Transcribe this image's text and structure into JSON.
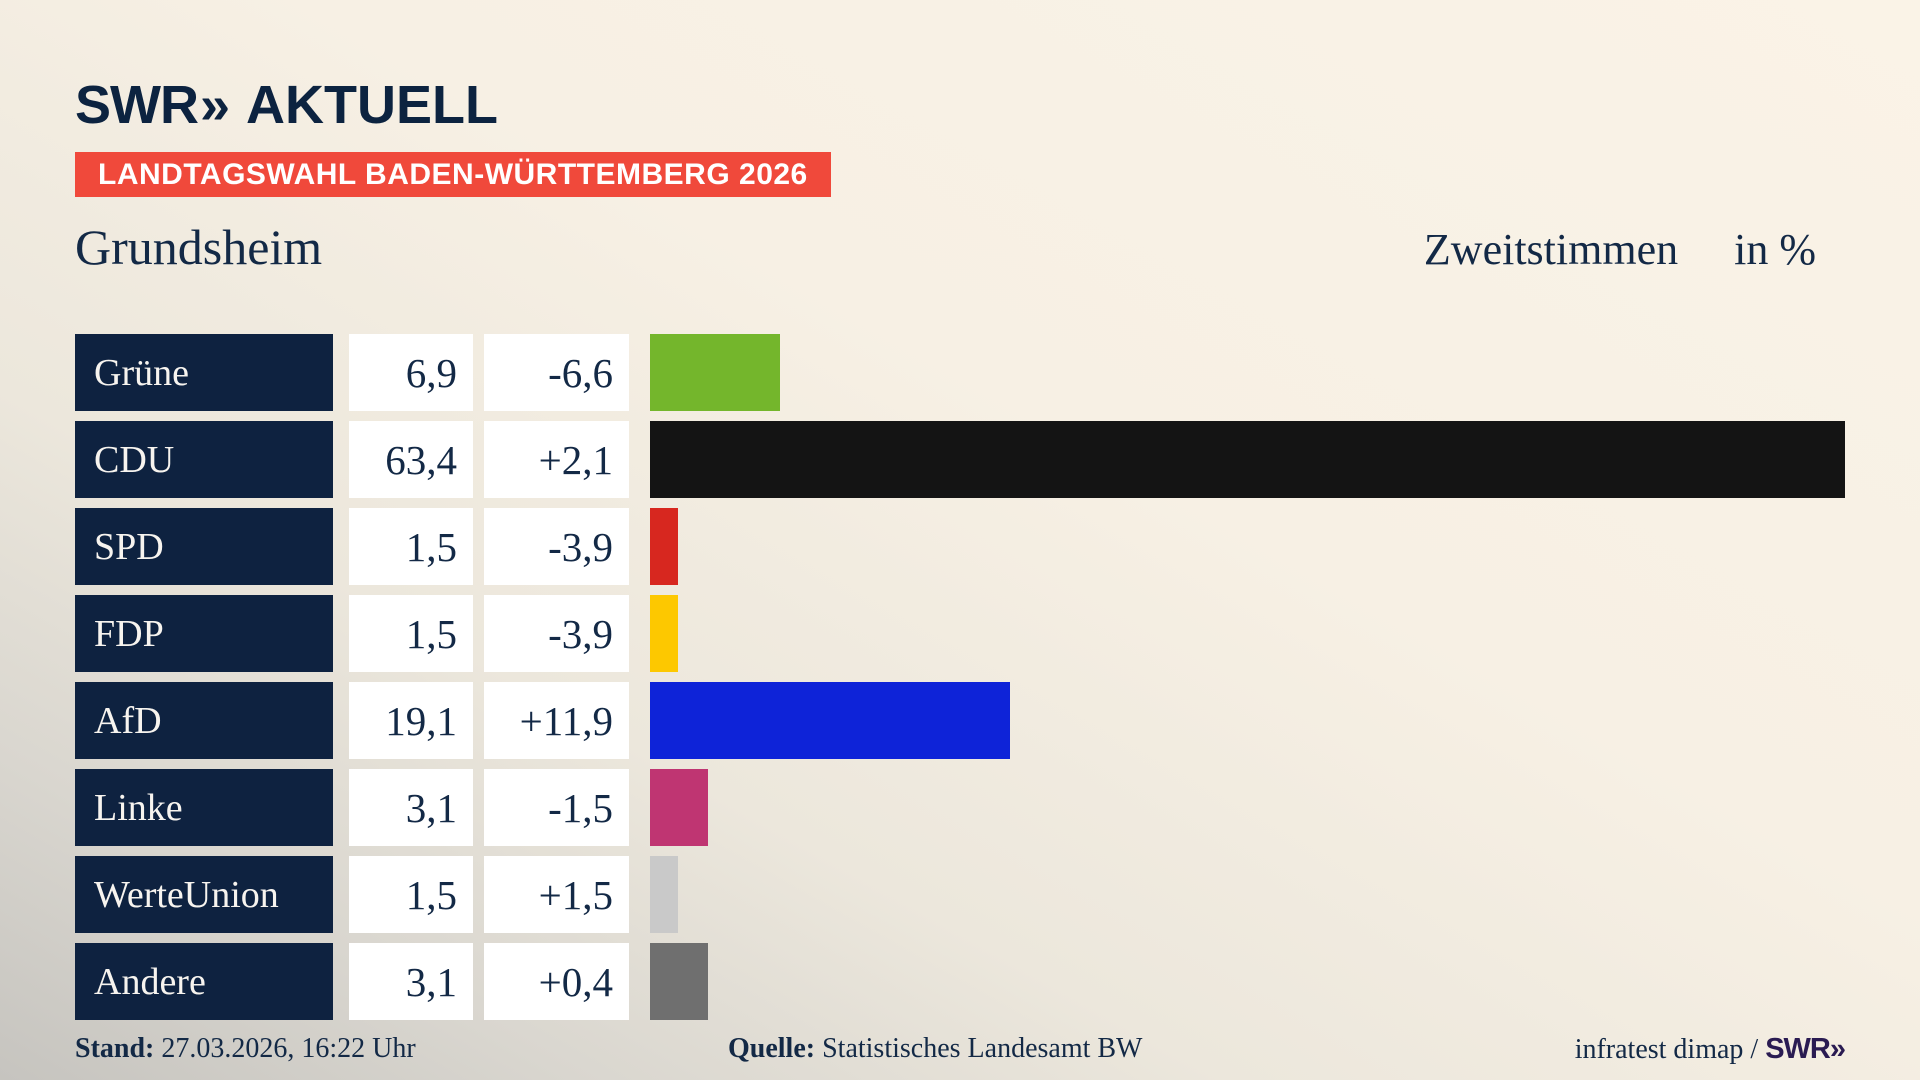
{
  "header": {
    "brand_swr": "SWR",
    "brand_chevrons": "»",
    "brand_aktuell": "AKTUELL",
    "banner": "LANDTAGSWAHL BADEN-WÜRTTEMBERG 2026",
    "title": "Grundsheim",
    "subtitle": "Zweitstimmen",
    "unit": "in %"
  },
  "chart_data": {
    "type": "bar",
    "title": "Grundsheim",
    "subtitle": "Zweitstimmen in %",
    "orientation": "horizontal",
    "categories": [
      "Grüne",
      "CDU",
      "SPD",
      "FDP",
      "AfD",
      "Linke",
      "WerteUnion",
      "Andere"
    ],
    "values": [
      6.9,
      63.4,
      1.5,
      1.5,
      19.1,
      3.1,
      1.5,
      3.1
    ],
    "value_labels": [
      "6,9",
      "63,4",
      "1,5",
      "1,5",
      "19,1",
      "3,1",
      "1,5",
      "3,1"
    ],
    "changes": [
      -6.6,
      2.1,
      -3.9,
      -3.9,
      11.9,
      -1.5,
      1.5,
      0.4
    ],
    "change_labels": [
      "-6,6",
      "+2,1",
      "-3,9",
      "-3,9",
      "+11,9",
      "-1,5",
      "+1,5",
      "+0,4"
    ],
    "bar_colors": [
      "#74b62c",
      "#141414",
      "#d7271f",
      "#fdc800",
      "#0e23d8",
      "#bf3572",
      "#c9c9c9",
      "#6f6f6f"
    ],
    "xlim": [
      0,
      63.4
    ],
    "grid": false,
    "legend": false
  },
  "footer": {
    "stand_label": "Stand:",
    "stand_value": "27.03.2026, 16:22 Uhr",
    "source_label": "Quelle:",
    "source_value": "Statistisches Landesamt BW",
    "credit_text": "infratest dimap /",
    "credit_brand": "SWR»"
  },
  "colors": {
    "background_cream": "#f7f0e4",
    "background_gray": "#c6c4bf",
    "navy_text": "#132946",
    "label_box": "#0e2240",
    "banner_red": "#f0493b",
    "cell_white": "#ffffff",
    "logo_navy": "#0c2340",
    "credit_purple": "#2a1b52"
  }
}
